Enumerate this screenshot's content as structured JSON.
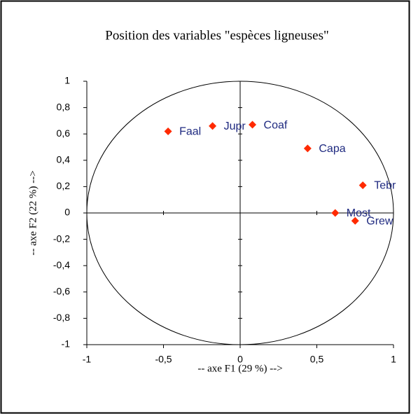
{
  "chart_data": {
    "type": "scatter",
    "title": "Position des variables \"espèces ligneuses\"",
    "x_label": "-- axe F1 (29 %) -->",
    "y_label": "-- axe F2 (22 %) -->",
    "labels": [
      "Faal",
      "Jupr",
      "Coaf",
      "Capa",
      "Tebr",
      "Most",
      "Grew"
    ],
    "x": [
      -0.47,
      -0.18,
      0.08,
      0.44,
      0.8,
      0.62,
      0.75
    ],
    "values": [
      0.62,
      0.66,
      0.67,
      0.49,
      0.21,
      0.0,
      -0.06
    ],
    "color": "#ff2a00",
    "xlim": [
      -1,
      1
    ],
    "ylim": [
      -1,
      1
    ],
    "xticks": [
      -1,
      {
        "value": -0.5,
        "label": "-0,5"
      },
      0,
      {
        "value": 0.5,
        "label": "0,5"
      },
      1
    ],
    "yticks": [
      -1,
      {
        "value": -0.8,
        "label": "-0,8"
      },
      {
        "value": -0.6,
        "label": "-0,6"
      },
      {
        "value": -0.4,
        "label": "-0,4"
      },
      {
        "value": -0.2,
        "label": "-0,2"
      },
      0,
      {
        "value": 0.2,
        "label": "0,2"
      },
      {
        "value": 0.4,
        "label": "0,4"
      },
      {
        "value": 0.6,
        "label": "0,6"
      },
      {
        "value": 0.8,
        "label": "0,8"
      },
      1
    ]
  }
}
